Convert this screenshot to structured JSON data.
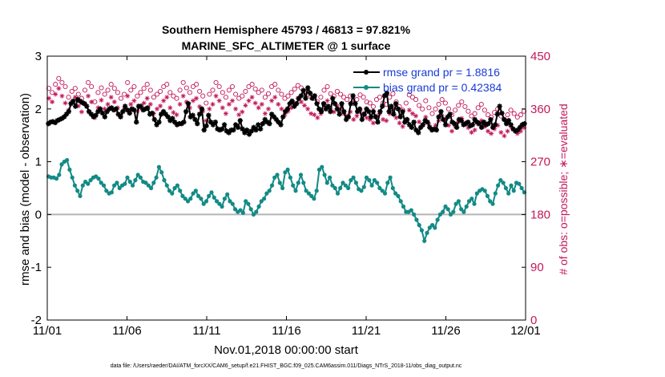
{
  "chart_data": {
    "type": "line",
    "title": "Southern Hemisphere 45793 / 46813 = 97.821%",
    "subtitle": "MARINE_SFC_ALTIMETER @ 1 surface",
    "xlabel": "Nov.01,2018 00:00:00 start",
    "ylabel": "rmse and bias (model - observation)",
    "ylabel_right": "# of obs: o=possible; ∗=evaluated",
    "footnote": "data file: /Users/raeder/DAI/ATM_forcXX/CAM6_setup/f.e21.FHIST_BGC.f09_025.CAM6assim.011/Diags_NTrS_2018-11/obs_diag_output.nc",
    "x_ticks": [
      "11/01",
      "11/06",
      "11/11",
      "11/16",
      "11/21",
      "11/26",
      "12/01"
    ],
    "x_range_days": [
      0,
      30
    ],
    "y_ticks": [
      "3",
      "2",
      "1",
      "0",
      "-1",
      "-2"
    ],
    "ylim": [
      -2,
      3
    ],
    "y_right_ticks": [
      "450",
      "360",
      "270",
      "180",
      "90",
      "0"
    ],
    "ylim_right": [
      0,
      450
    ],
    "grid": false,
    "zero_line": true,
    "legend_position": "top-right",
    "legend": [
      "rmse grand pr = 1.8816",
      "bias grand pr = 0.42384"
    ],
    "colors": {
      "rmse": "#000000",
      "bias": "#138a86",
      "obs": "#c2185b",
      "legend_text": "#1a3bd6",
      "zero_line": "#b5b5b5"
    },
    "series": [
      {
        "name": "rmse grand pr = 1.8816",
        "axis": "left",
        "marker": "star",
        "values": [
          1.72,
          1.75,
          1.76,
          1.74,
          1.78,
          1.8,
          1.82,
          1.85,
          1.9,
          1.95,
          2.1,
          2.15,
          2.05,
          2.18,
          2.15,
          2.12,
          2.1,
          2.05,
          1.95,
          1.9,
          1.85,
          1.88,
          1.95,
          2.0,
          1.92,
          1.85,
          1.95,
          2.0,
          2.02,
          1.98,
          2.0,
          1.9,
          1.85,
          1.95,
          2.05,
          1.98,
          1.92,
          2.0,
          1.98,
          1.75,
          2.05,
          2.05,
          1.98,
          2.0,
          2.02,
          1.9,
          1.92,
          1.8,
          1.7,
          1.75,
          1.9,
          1.95,
          1.9,
          1.85,
          1.78,
          1.82,
          1.75,
          1.7,
          1.72,
          1.72,
          1.75,
          1.95,
          2.1,
          1.85,
          1.88,
          1.8,
          1.72,
          1.9,
          2.0,
          1.6,
          1.68,
          1.88,
          1.75,
          1.7,
          1.75,
          1.62,
          1.6,
          1.62,
          1.7,
          1.58,
          1.55,
          1.6,
          1.6,
          1.7,
          1.65,
          1.78,
          1.62,
          1.55,
          1.6,
          1.52,
          1.58,
          1.65,
          1.6,
          1.7,
          1.62,
          1.72,
          1.8,
          1.75,
          1.72,
          1.9,
          1.85,
          1.8,
          1.75,
          1.7,
          1.85,
          1.95,
          2.0,
          2.1,
          2.15,
          2.05,
          2.1,
          2.2,
          2.25,
          2.35,
          2.2,
          2.4,
          2.3,
          2.2,
          2.25,
          2.1,
          2.0,
          1.95,
          2.1,
          2.0,
          2.05,
          1.95,
          2.2,
          2.1,
          2.0,
          1.9,
          2.1,
          1.95,
          1.8,
          1.85,
          2.1,
          2.25,
          2.1,
          1.95,
          2.0,
          1.8,
          1.9,
          2.0,
          1.95,
          1.85,
          1.95,
          1.85,
          1.75,
          1.95,
          2.05,
          2.25,
          2.3,
          1.95,
          2.05,
          1.9,
          2.1,
          2.0,
          1.85,
          1.95,
          1.75,
          1.8,
          1.7,
          1.65,
          1.75,
          1.6,
          1.55,
          1.65,
          1.7,
          1.78,
          1.75,
          1.65,
          1.6,
          1.62,
          1.6,
          1.85,
          1.95,
          1.8,
          1.7,
          1.85,
          1.9,
          1.75,
          1.72,
          1.65,
          1.8,
          1.78,
          1.7,
          1.72,
          1.75,
          1.68,
          1.7,
          1.8,
          1.75,
          1.72,
          1.65,
          1.75,
          1.7,
          1.72,
          1.8,
          1.65,
          1.7,
          1.9,
          2.05,
          1.92,
          1.8,
          1.72,
          1.78,
          1.7,
          1.62,
          1.58,
          1.6,
          1.65,
          1.7,
          1.72
        ]
      },
      {
        "name": "bias grand pr = 0.42384",
        "axis": "left",
        "marker": "dot",
        "values": [
          0.72,
          0.7,
          0.7,
          0.68,
          0.75,
          0.95,
          1.0,
          1.03,
          0.85,
          0.7,
          0.55,
          0.45,
          0.35,
          0.55,
          0.62,
          0.58,
          0.65,
          0.7,
          0.72,
          0.68,
          0.6,
          0.55,
          0.45,
          0.4,
          0.42,
          0.55,
          0.6,
          0.5,
          0.55,
          0.58,
          0.7,
          0.62,
          0.55,
          0.65,
          0.75,
          0.7,
          0.62,
          0.6,
          0.55,
          0.5,
          0.6,
          0.7,
          0.9,
          0.8,
          0.65,
          0.55,
          0.45,
          0.4,
          0.5,
          0.55,
          0.45,
          0.35,
          0.3,
          0.25,
          0.3,
          0.4,
          0.45,
          0.35,
          0.3,
          0.2,
          0.25,
          0.35,
          0.42,
          0.32,
          0.25,
          0.2,
          0.15,
          0.3,
          0.38,
          0.25,
          0.2,
          0.1,
          0.05,
          0.08,
          0.03,
          0.25,
          0.2,
          0.1,
          0.0,
          0.05,
          0.15,
          0.25,
          0.3,
          0.4,
          0.45,
          0.55,
          0.7,
          0.75,
          0.6,
          0.5,
          0.8,
          0.85,
          0.7,
          0.55,
          0.45,
          0.6,
          0.75,
          0.6,
          0.45,
          0.4,
          0.35,
          0.3,
          0.45,
          0.85,
          0.9,
          0.75,
          0.6,
          0.7,
          0.55,
          0.5,
          0.4,
          0.5,
          0.6,
          0.55,
          0.5,
          0.65,
          0.7,
          0.6,
          0.48,
          0.45,
          0.52,
          0.7,
          0.65,
          0.55,
          0.65,
          0.6,
          0.5,
          0.45,
          0.4,
          0.6,
          0.7,
          0.5,
          0.4,
          0.35,
          0.25,
          0.15,
          0.05,
          0.05,
          0.08,
          0.0,
          -0.1,
          -0.2,
          -0.3,
          -0.5,
          -0.35,
          -0.25,
          -0.2,
          -0.25,
          -0.1,
          0.0,
          0.05,
          0.15,
          0.1,
          0.0,
          0.05,
          0.2,
          0.25,
          0.1,
          0.05,
          0.15,
          0.25,
          0.3,
          0.2,
          0.4,
          0.45,
          0.48,
          0.45,
          0.35,
          0.25,
          0.2,
          0.4,
          0.55,
          0.65,
          0.6,
          0.5,
          0.4,
          0.55,
          0.45,
          0.6,
          0.58,
          0.5,
          0.42
        ]
      },
      {
        "name": "possible",
        "axis": "right",
        "marker": "circle",
        "values": [
          395,
          388,
          402,
          412,
          405,
          398,
          380,
          390,
          395,
          385,
          378,
          392,
          405,
          398,
          372,
          388,
          396,
          385,
          392,
          402,
          395,
          388,
          378,
          385,
          405,
          392,
          398,
          382,
          388,
          395,
          402,
          392,
          380,
          385,
          390,
          398,
          402,
          388,
          382,
          378,
          392,
          405,
          396,
          388,
          398,
          402,
          390,
          382,
          370,
          385,
          392,
          405,
          398,
          388,
          380,
          392,
          398,
          385,
          378,
          382,
          390,
          398,
          402,
          394,
          388,
          392,
          380,
          386,
          398,
          402,
          392,
          385,
          378,
          382,
          388,
          394,
          400,
          396,
          390,
          385,
          380,
          378,
          372,
          380,
          392,
          398,
          386,
          382,
          390,
          385,
          380,
          376,
          382,
          370,
          376,
          384,
          380,
          372,
          370,
          364,
          376,
          380,
          370,
          368,
          380,
          386,
          372,
          364,
          358,
          370,
          384,
          380,
          376,
          366,
          360,
          374,
          362,
          352,
          360,
          368,
          376,
          370,
          360,
          350,
          358,
          366,
          372,
          364,
          356,
          348,
          352,
          362,
          368,
          358,
          350,
          346,
          354,
          360,
          348,
          342,
          350,
          358,
          352,
          346,
          350,
          356
        ]
      },
      {
        "name": "evaluated",
        "axis": "right",
        "marker": "star",
        "values": [
          378,
          372,
          385,
          395,
          382,
          370,
          358,
          372,
          380,
          365,
          355,
          368,
          382,
          372,
          345,
          362,
          375,
          360,
          368,
          380,
          372,
          362,
          350,
          360,
          382,
          368,
          374,
          356,
          362,
          370,
          378,
          368,
          352,
          360,
          365,
          374,
          380,
          362,
          354,
          350,
          368,
          382,
          372,
          362,
          374,
          378,
          364,
          356,
          340,
          360,
          368,
          382,
          374,
          362,
          352,
          368,
          374,
          360,
          350,
          355,
          366,
          374,
          380,
          370,
          362,
          368,
          352,
          360,
          374,
          380,
          368,
          360,
          350,
          356,
          362,
          370,
          378,
          372,
          366,
          360,
          352,
          350,
          345,
          352,
          368,
          374,
          360,
          355,
          365,
          360,
          352,
          348,
          355,
          342,
          348,
          358,
          352,
          345,
          342,
          336,
          348,
          352,
          342,
          340,
          352,
          360,
          345,
          336,
          330,
          342,
          358,
          352,
          348,
          338,
          332,
          346,
          334,
          324,
          332,
          340,
          348,
          342,
          332,
          322,
          330,
          338,
          344,
          336,
          328,
          320,
          324,
          334,
          340,
          330,
          322,
          318,
          326,
          332,
          320,
          314,
          322,
          330,
          324,
          318,
          322,
          328
        ]
      }
    ]
  }
}
